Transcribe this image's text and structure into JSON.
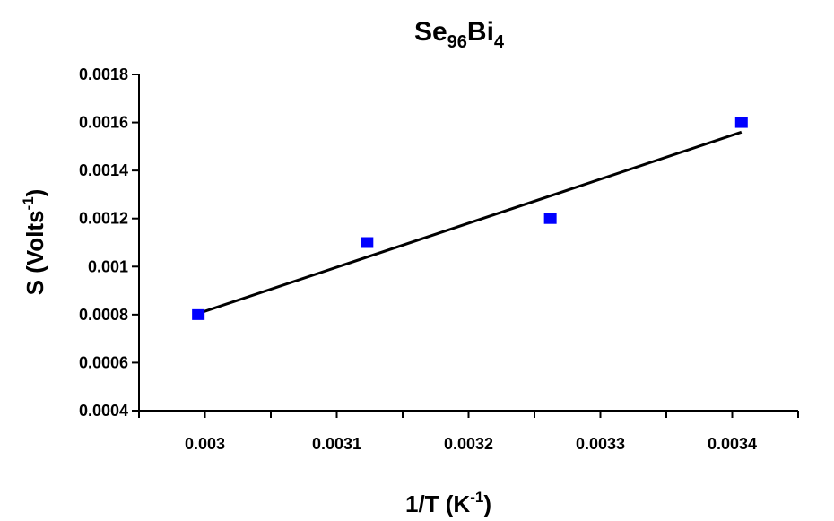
{
  "chart_data": {
    "type": "scatter",
    "title": {
      "base1": "Se",
      "sub1": "96",
      "base2": "Bi",
      "sub2": "4"
    },
    "xlabel": {
      "base": "1/T (K",
      "sup": "-1",
      "end": ")"
    },
    "ylabel": {
      "base": "S (Volts",
      "sup": "-1",
      "end": ")"
    },
    "xlim": [
      0.00295,
      0.00345
    ],
    "ylim": [
      0.0004,
      0.0018
    ],
    "x_ticks": [
      0.00295,
      0.003,
      0.00305,
      0.0031,
      0.00315,
      0.0032,
      0.00325,
      0.0033,
      0.00335,
      0.0034,
      0.00345
    ],
    "x_tick_labels": [
      "",
      "0.003",
      "",
      "0.0031",
      "",
      "0.0032",
      "",
      "0.0033",
      "",
      "0.0034",
      ""
    ],
    "y_ticks": [
      0.0004,
      0.0006,
      0.0008,
      0.001,
      0.0012,
      0.0014,
      0.0016,
      0.0018
    ],
    "y_tick_labels": [
      "0.0004",
      "0.0006",
      "0.0008",
      "0.001",
      "0.0012",
      "0.0014",
      "0.0016",
      "0.0018"
    ],
    "series": [
      {
        "marker": "square",
        "color": "#0000ff",
        "x": [
          0.002995,
          0.003123,
          0.003262,
          0.003407
        ],
        "y": [
          0.0008,
          0.0011,
          0.0012,
          0.0016
        ]
      }
    ],
    "trendline": {
      "type": "linear",
      "color": "#000000",
      "x": [
        0.002995,
        0.003407
      ],
      "y": [
        0.000805,
        0.00156
      ]
    },
    "grid": false,
    "legend": "none"
  }
}
